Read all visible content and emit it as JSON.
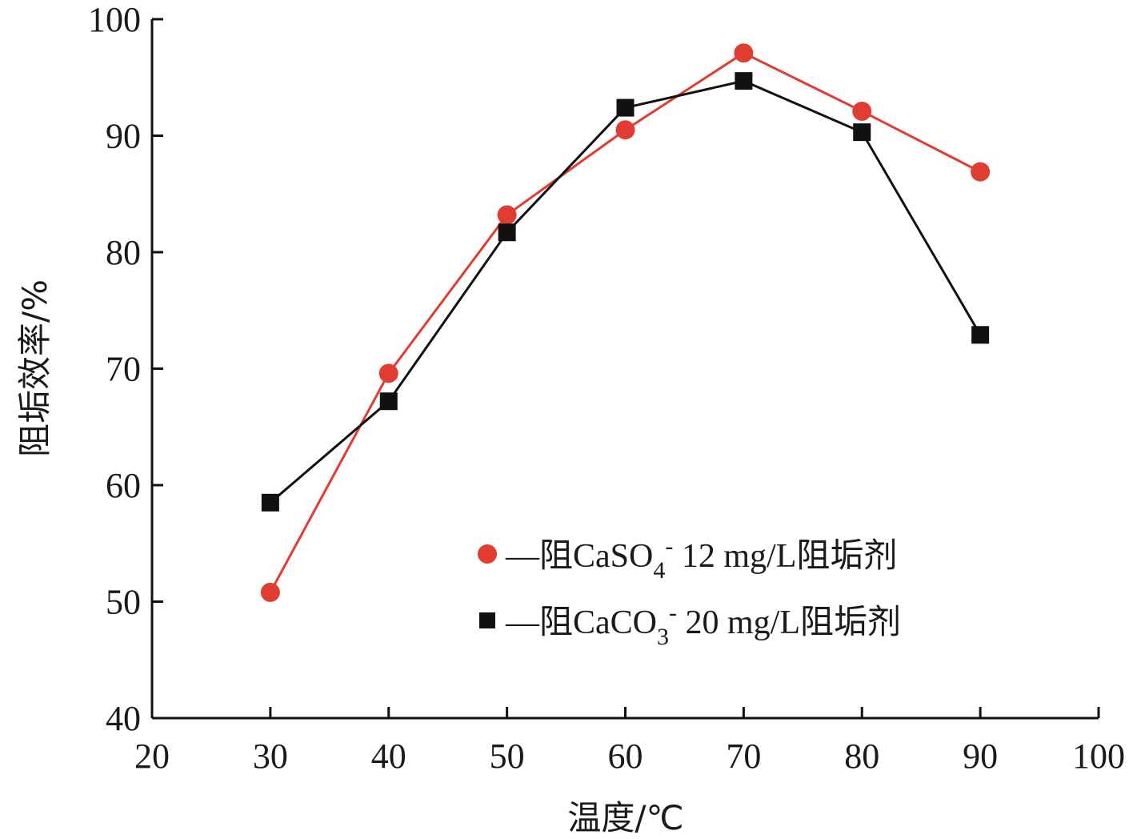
{
  "chart_data": {
    "type": "line",
    "title": "",
    "xlabel": "温度/℃",
    "ylabel": "阻垢效率/%",
    "xlim": [
      20,
      100
    ],
    "ylim": [
      40,
      100
    ],
    "xticks": [
      20,
      30,
      40,
      50,
      60,
      70,
      80,
      90,
      100
    ],
    "yticks": [
      40,
      50,
      60,
      70,
      80,
      90,
      100
    ],
    "grid": false,
    "legend_position": "bottom-right",
    "series": [
      {
        "name": "—阻CaSO4- 12 mg/L阻垢剂",
        "marker": "circle",
        "color": "#e03c31",
        "x": [
          30,
          40,
          50,
          60,
          70,
          80,
          90
        ],
        "y": [
          50.8,
          69.6,
          83.2,
          90.5,
          97.1,
          92.1,
          86.9
        ]
      },
      {
        "name": "—阻CaCO3- 20 mg/L阻垢剂",
        "marker": "square",
        "color": "#111111",
        "x": [
          30,
          40,
          50,
          60,
          70,
          80,
          90
        ],
        "y": [
          58.5,
          67.2,
          81.7,
          92.4,
          94.7,
          90.3,
          72.9
        ]
      }
    ]
  }
}
